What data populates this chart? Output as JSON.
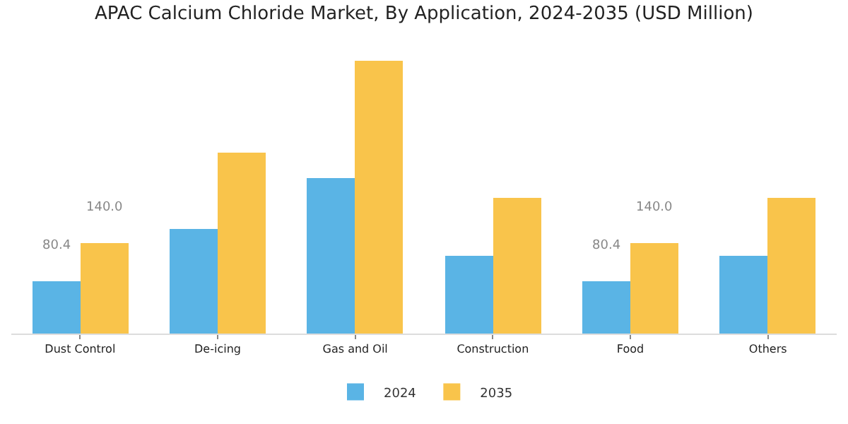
{
  "chart_data": {
    "type": "bar",
    "title": "APAC Calcium Chloride Market, By Application, 2024-2035 (USD Million)",
    "categories": [
      "Dust Control",
      "De-icing",
      "Gas and Oil",
      "Construction",
      "Food",
      "Others"
    ],
    "series": [
      {
        "name": "2024",
        "color": "#5ab4e5",
        "values": [
          80.4,
          162,
          242,
          121,
          80.4,
          121
        ],
        "value_labels": [
          "80.4",
          null,
          null,
          null,
          "80.4",
          null
        ]
      },
      {
        "name": "2035",
        "color": "#f9c44b",
        "values": [
          140.0,
          281,
          422,
          211,
          140.0,
          211
        ],
        "value_labels": [
          "140.0",
          null,
          null,
          null,
          "140.0",
          null
        ]
      }
    ],
    "legend": "bottom"
  }
}
